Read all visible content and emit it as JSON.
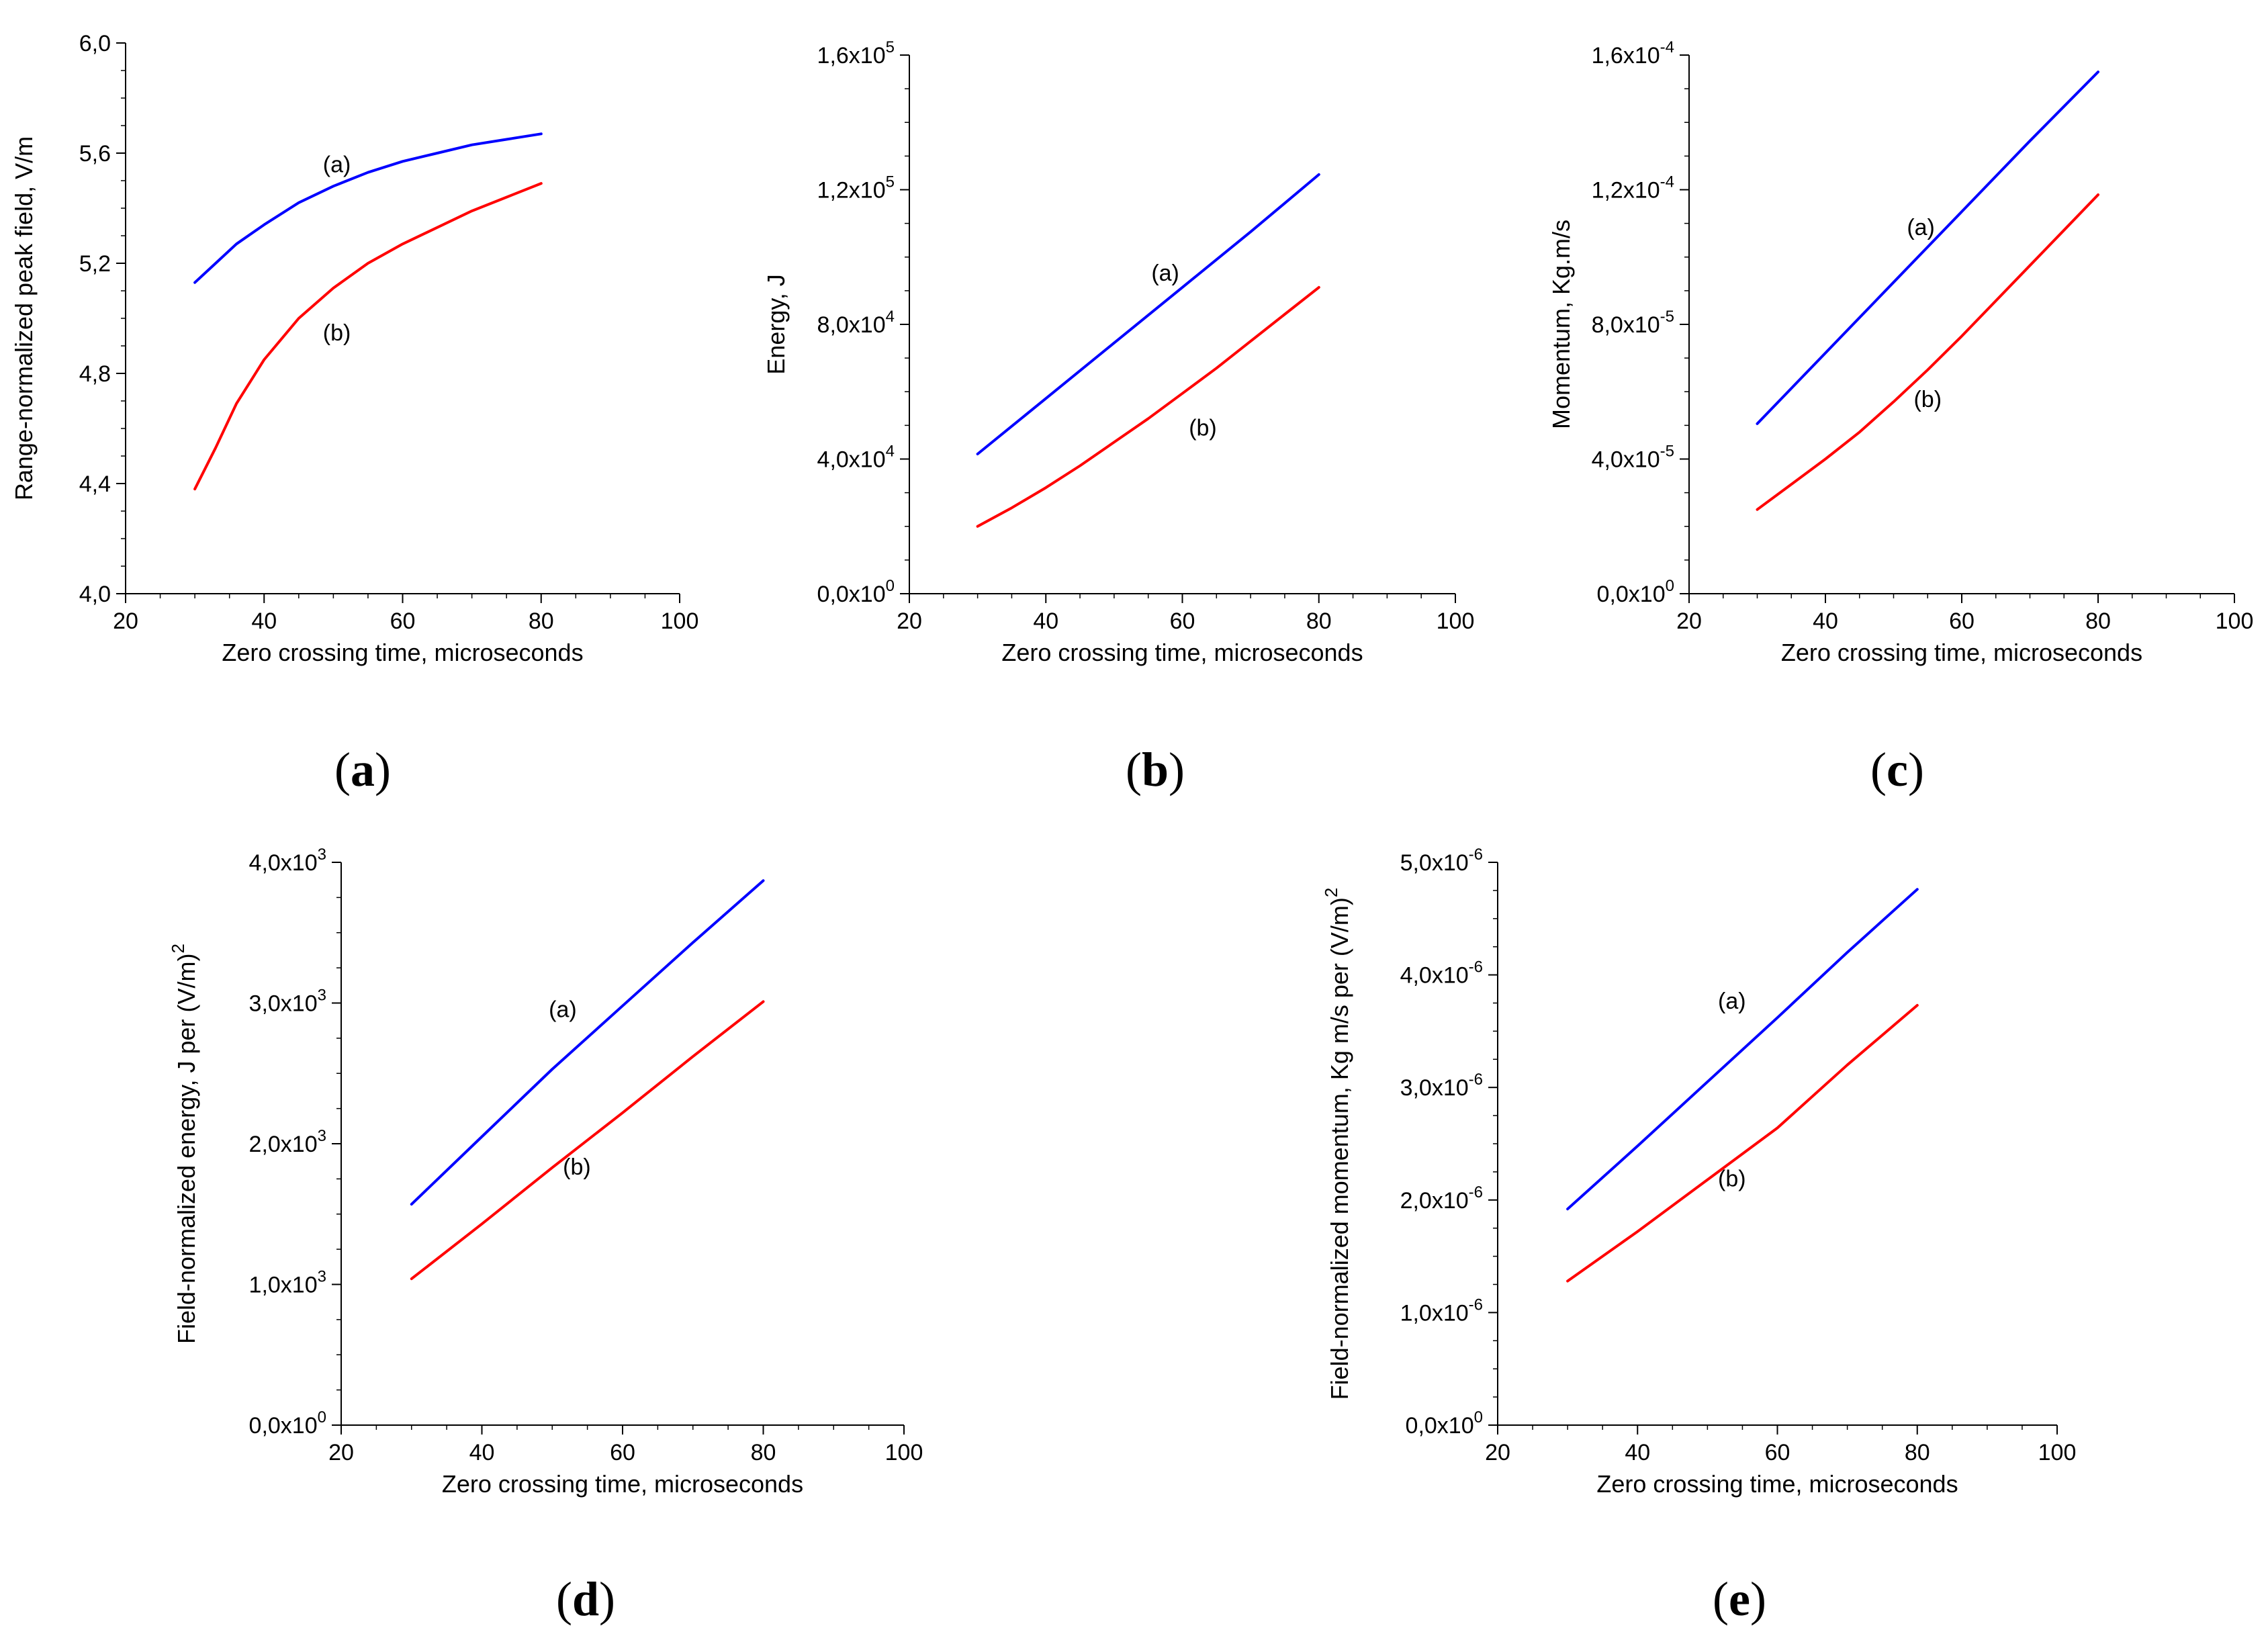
{
  "figure": {
    "panels": [
      "a",
      "b",
      "c",
      "d",
      "e"
    ]
  },
  "chart_data": [
    {
      "id": "a",
      "caption": "a",
      "type": "line",
      "xlabel": "Zero crossing time, microseconds",
      "ylabel": "Range-normalized peak field, V/m",
      "xlim": [
        20,
        100
      ],
      "ylim": [
        4.0,
        6.0
      ],
      "xticks": [
        20,
        40,
        60,
        80,
        100
      ],
      "yticks": [
        {
          "value": 4.0,
          "mantissa": "4,0",
          "exp": null
        },
        {
          "value": 4.4,
          "mantissa": "4,4",
          "exp": null
        },
        {
          "value": 4.8,
          "mantissa": "4,8",
          "exp": null
        },
        {
          "value": 5.2,
          "mantissa": "5,2",
          "exp": null
        },
        {
          "value": 5.6,
          "mantissa": "5,6",
          "exp": null
        },
        {
          "value": 6.0,
          "mantissa": "6,0",
          "exp": null
        }
      ],
      "series": [
        {
          "name": "(a)",
          "color": "#0000ff",
          "x": [
            30,
            33,
            36,
            40,
            45,
            50,
            55,
            60,
            65,
            70,
            75,
            80
          ],
          "y": [
            5.13,
            5.2,
            5.27,
            5.34,
            5.42,
            5.48,
            5.53,
            5.57,
            5.6,
            5.63,
            5.65,
            5.67
          ],
          "label_at": [
            50.5,
            5.53
          ]
        },
        {
          "name": "(b)",
          "color": "#ff0000",
          "x": [
            30,
            33,
            36,
            40,
            45,
            50,
            55,
            60,
            65,
            70,
            75,
            80
          ],
          "y": [
            4.38,
            4.53,
            4.69,
            4.85,
            5.0,
            5.11,
            5.2,
            5.27,
            5.33,
            5.39,
            5.44,
            5.49
          ],
          "label_at": [
            50.5,
            4.92
          ]
        }
      ]
    },
    {
      "id": "b",
      "caption": "b",
      "type": "line",
      "xlabel": "Zero crossing time, microseconds",
      "ylabel": "Energy, J",
      "xlim": [
        20,
        100
      ],
      "ylim": [
        0,
        160000
      ],
      "xticks": [
        20,
        40,
        60,
        80,
        100
      ],
      "yticks": [
        {
          "value": 0,
          "mantissa": "0,0x10",
          "exp": "0"
        },
        {
          "value": 40000,
          "mantissa": "4,0x10",
          "exp": "4"
        },
        {
          "value": 80000,
          "mantissa": "8,0x10",
          "exp": "4"
        },
        {
          "value": 120000,
          "mantissa": "1,2x10",
          "exp": "5"
        },
        {
          "value": 160000,
          "mantissa": "1,6x10",
          "exp": "5"
        }
      ],
      "series": [
        {
          "name": "(a)",
          "color": "#0000ff",
          "x": [
            30,
            40,
            50,
            60,
            70,
            80
          ],
          "y": [
            41500,
            58000,
            74500,
            91000,
            107500,
            124500
          ],
          "label_at": [
            57.5,
            93000
          ]
        },
        {
          "name": "(b)",
          "color": "#ff0000",
          "x": [
            30,
            35,
            40,
            45,
            50,
            55,
            60,
            65,
            70,
            75,
            80
          ],
          "y": [
            20000,
            25500,
            31500,
            38000,
            45000,
            52000,
            59500,
            67000,
            75000,
            83000,
            91000
          ],
          "label_at": [
            63,
            47000
          ]
        }
      ]
    },
    {
      "id": "c",
      "caption": "c",
      "type": "line",
      "xlabel": "Zero crossing time, microseconds",
      "ylabel": "Momentum, Kg.m/s",
      "xlim": [
        20,
        100
      ],
      "ylim": [
        0,
        0.00016
      ],
      "xticks": [
        20,
        40,
        60,
        80,
        100
      ],
      "yticks": [
        {
          "value": 0,
          "mantissa": "0,0x10",
          "exp": "0"
        },
        {
          "value": 4e-05,
          "mantissa": "4,0x10",
          "exp": "-5"
        },
        {
          "value": 8e-05,
          "mantissa": "8,0x10",
          "exp": "-5"
        },
        {
          "value": 0.00012,
          "mantissa": "1,2x10",
          "exp": "-4"
        },
        {
          "value": 0.00016,
          "mantissa": "1,6x10",
          "exp": "-4"
        }
      ],
      "series": [
        {
          "name": "(a)",
          "color": "#0000ff",
          "x": [
            30,
            40,
            50,
            60,
            70,
            80
          ],
          "y": [
            5.05e-05,
            7.15e-05,
            9.25e-05,
            0.0001135,
            0.0001345,
            0.000155
          ],
          "label_at": [
            54,
            0.0001065
          ]
        },
        {
          "name": "(b)",
          "color": "#ff0000",
          "x": [
            30,
            35,
            40,
            45,
            50,
            55,
            60,
            65,
            70,
            75,
            80
          ],
          "y": [
            2.5e-05,
            3.25e-05,
            4e-05,
            4.8e-05,
            5.7e-05,
            6.65e-05,
            7.65e-05,
            8.7e-05,
            9.75e-05,
            0.000108,
            0.0001185
          ],
          "label_at": [
            55,
            5.55e-05
          ]
        }
      ]
    },
    {
      "id": "d",
      "caption": "d",
      "type": "line",
      "xlabel": "Zero crossing time, microseconds",
      "ylabel": "Field-normalized energy, J per (V/m)",
      "ylabel_sup": "2",
      "xlim": [
        20,
        100
      ],
      "ylim": [
        0,
        4000
      ],
      "xticks": [
        20,
        40,
        60,
        80,
        100
      ],
      "yticks": [
        {
          "value": 0,
          "mantissa": "0,0x10",
          "exp": "0"
        },
        {
          "value": 1000,
          "mantissa": "1,0x10",
          "exp": "3"
        },
        {
          "value": 2000,
          "mantissa": "2,0x10",
          "exp": "3"
        },
        {
          "value": 3000,
          "mantissa": "3,0x10",
          "exp": "3"
        },
        {
          "value": 4000,
          "mantissa": "4,0x10",
          "exp": "3"
        }
      ],
      "series": [
        {
          "name": "(a)",
          "color": "#0000ff",
          "x": [
            30,
            40,
            50,
            60,
            70,
            80
          ],
          "y": [
            1570,
            2050,
            2530,
            2980,
            3430,
            3870
          ],
          "label_at": [
            51.5,
            2900
          ]
        },
        {
          "name": "(b)",
          "color": "#ff0000",
          "x": [
            30,
            40,
            50,
            60,
            70,
            80
          ],
          "y": [
            1040,
            1430,
            1830,
            2220,
            2620,
            3010
          ],
          "label_at": [
            53.5,
            1780
          ]
        }
      ]
    },
    {
      "id": "e",
      "caption": "e",
      "type": "line",
      "xlabel": "Zero crossing time, microseconds",
      "ylabel": "Field-normalized momentum, Kg m/s per (V/m)",
      "ylabel_sup": "2",
      "xlim": [
        20,
        100
      ],
      "ylim": [
        0,
        5e-06
      ],
      "xticks": [
        20,
        40,
        60,
        80,
        100
      ],
      "yticks": [
        {
          "value": 0,
          "mantissa": "0,0x10",
          "exp": "0"
        },
        {
          "value": 1e-06,
          "mantissa": "1,0x10",
          "exp": "-6"
        },
        {
          "value": 2e-06,
          "mantissa": "2,0x10",
          "exp": "-6"
        },
        {
          "value": 3e-06,
          "mantissa": "3,0x10",
          "exp": "-6"
        },
        {
          "value": 4e-06,
          "mantissa": "4,0x10",
          "exp": "-6"
        },
        {
          "value": 5e-06,
          "mantissa": "5,0x10",
          "exp": "-6"
        }
      ],
      "series": [
        {
          "name": "(a)",
          "color": "#0000ff",
          "x": [
            30,
            40,
            50,
            60,
            70,
            80
          ],
          "y": [
            1.92e-06,
            2.48e-06,
            3.05e-06,
            3.62e-06,
            4.2e-06,
            4.76e-06
          ],
          "label_at": [
            53.5,
            3.7e-06
          ]
        },
        {
          "name": "(b)",
          "color": "#ff0000",
          "x": [
            30,
            40,
            50,
            60,
            70,
            80
          ],
          "y": [
            1.28e-06,
            1.72e-06,
            2.18e-06,
            2.64e-06,
            3.2e-06,
            3.73e-06
          ],
          "label_at": [
            53.5,
            2.12e-06
          ]
        }
      ]
    }
  ]
}
